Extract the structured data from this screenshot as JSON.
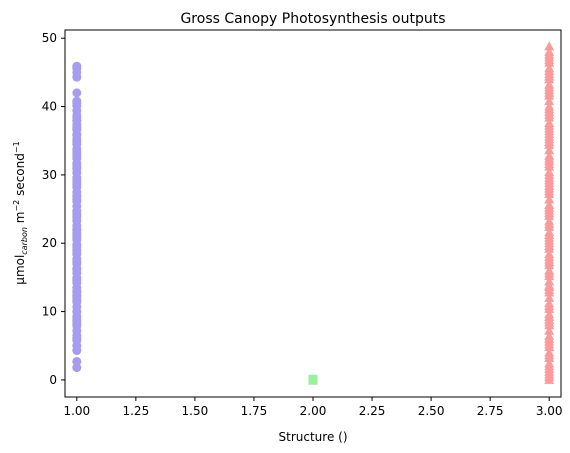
{
  "chart_data": {
    "type": "scatter",
    "title": "Gross Canopy Photosynthesis outputs",
    "xlabel": "Structure ()",
    "ylabel": {
      "prefix": "μmol",
      "subscript": "carbon",
      "middle": " m",
      "sup1": "−2",
      "middle2": " second",
      "sup2": "−1"
    },
    "xlim": [
      0.95,
      3.05
    ],
    "ylim": [
      -2.5,
      51.2
    ],
    "x_ticks": [
      1.0,
      1.25,
      1.5,
      1.75,
      2.0,
      2.25,
      2.5,
      2.75,
      3.0
    ],
    "x_tick_labels": [
      "1.00",
      "1.25",
      "1.50",
      "1.75",
      "2.00",
      "2.25",
      "2.50",
      "2.75",
      "3.00"
    ],
    "y_ticks": [
      0,
      10,
      20,
      30,
      40,
      50
    ],
    "y_tick_labels": [
      "0",
      "10",
      "20",
      "30",
      "40",
      "50"
    ],
    "grid": false,
    "series": [
      {
        "color": "#a79ced",
        "marker": "circle",
        "x": [
          1,
          1,
          1,
          1,
          1,
          1,
          1,
          1,
          1,
          1,
          1,
          1,
          1,
          1,
          1,
          1,
          1,
          1,
          1,
          1,
          1,
          1,
          1,
          1,
          1,
          1,
          1,
          1,
          1,
          1,
          1,
          1,
          1,
          1,
          1,
          1,
          1,
          1,
          1,
          1,
          1,
          1,
          1,
          1,
          1,
          1,
          1,
          1,
          1,
          1,
          1,
          1,
          1,
          1,
          1,
          1,
          1,
          1,
          1,
          1,
          1,
          1,
          1,
          1,
          1,
          1,
          1,
          1,
          1,
          1,
          1,
          1,
          1,
          1,
          1,
          1,
          1,
          1,
          1,
          1,
          1,
          1,
          1,
          1,
          1,
          1,
          1,
          1,
          1,
          1
        ],
        "y": [
          1.8,
          2.7,
          4.3,
          5.0,
          5.8,
          6.5,
          7.2,
          7.9,
          8.6,
          9.3,
          10.0,
          10.7,
          11.4,
          12.1,
          12.8,
          13.5,
          14.2,
          14.9,
          15.6,
          16.3,
          17.0,
          17.7,
          18.4,
          19.1,
          19.8,
          20.5,
          21.2,
          21.9,
          22.6,
          23.3,
          24.0,
          24.7,
          25.4,
          26.1,
          26.8,
          27.5,
          28.2,
          28.9,
          29.6,
          30.3,
          31.0,
          31.7,
          32.4,
          33.1,
          33.8,
          34.5,
          35.2,
          35.9,
          36.6,
          37.3,
          38.0,
          38.7,
          39.4,
          40.1,
          40.8,
          42.0,
          44.3,
          45.0,
          45.6,
          45.9,
          6.1,
          9.0,
          11.7,
          14.6,
          17.3,
          19.5,
          22.1,
          24.3,
          27.0,
          29.2,
          31.4,
          33.5,
          35.8,
          37.9,
          40.5,
          13.0,
          16.1,
          18.8,
          21.5,
          23.8,
          26.4,
          28.6,
          30.9,
          32.8,
          34.9,
          36.9,
          38.4,
          8.2,
          12.4,
          20.8
        ],
        "name": ""
      },
      {
        "color": "#98f098",
        "marker": "square",
        "x": [
          2,
          2,
          2,
          2,
          2
        ],
        "y": [
          0.0,
          0.05,
          0.1,
          -0.05,
          0.02
        ],
        "name": ""
      },
      {
        "color": "#fa9a9a",
        "marker": "triangle",
        "x": [
          3,
          3,
          3,
          3,
          3,
          3,
          3,
          3,
          3,
          3,
          3,
          3,
          3,
          3,
          3,
          3,
          3,
          3,
          3,
          3,
          3,
          3,
          3,
          3,
          3,
          3,
          3,
          3,
          3,
          3,
          3,
          3,
          3,
          3,
          3,
          3,
          3,
          3,
          3,
          3,
          3,
          3,
          3,
          3,
          3,
          3,
          3,
          3,
          3,
          3,
          3,
          3,
          3,
          3,
          3,
          3,
          3,
          3,
          3,
          3,
          3,
          3,
          3,
          3,
          3,
          3,
          3,
          3,
          3,
          3,
          3,
          3,
          3,
          3,
          3,
          3,
          3,
          3,
          3,
          3,
          3,
          3,
          3,
          3,
          3,
          3,
          3,
          3,
          3,
          3,
          3,
          3,
          3,
          3,
          3,
          3,
          3,
          3,
          3,
          3
        ],
        "y": [
          0.0,
          0.8,
          1.6,
          2.4,
          3.2,
          4.0,
          4.8,
          5.6,
          6.4,
          7.2,
          8.0,
          8.8,
          9.6,
          10.4,
          11.2,
          12.0,
          12.8,
          13.6,
          14.4,
          15.2,
          16.0,
          16.8,
          17.6,
          18.4,
          19.2,
          20.0,
          20.8,
          21.6,
          22.4,
          23.2,
          24.0,
          24.8,
          25.6,
          26.4,
          27.2,
          28.0,
          28.8,
          29.6,
          30.4,
          31.2,
          32.0,
          32.8,
          33.6,
          34.4,
          35.2,
          36.0,
          36.8,
          37.6,
          38.4,
          39.2,
          40.0,
          40.8,
          41.6,
          42.4,
          43.2,
          44.0,
          44.8,
          45.6,
          46.4,
          47.2,
          48.0,
          48.8,
          1.2,
          3.6,
          6.0,
          8.4,
          10.8,
          13.2,
          15.6,
          18.0,
          20.4,
          22.8,
          25.2,
          27.6,
          30.0,
          32.4,
          34.8,
          37.2,
          39.6,
          42.0,
          44.4,
          46.8,
          2.0,
          5.2,
          9.2,
          13.8,
          17.2,
          21.2,
          24.4,
          28.4,
          31.6,
          35.6,
          38.8,
          42.8,
          45.2,
          47.6,
          0.4,
          19.6,
          29.2,
          36.4
        ],
        "name": ""
      }
    ]
  }
}
